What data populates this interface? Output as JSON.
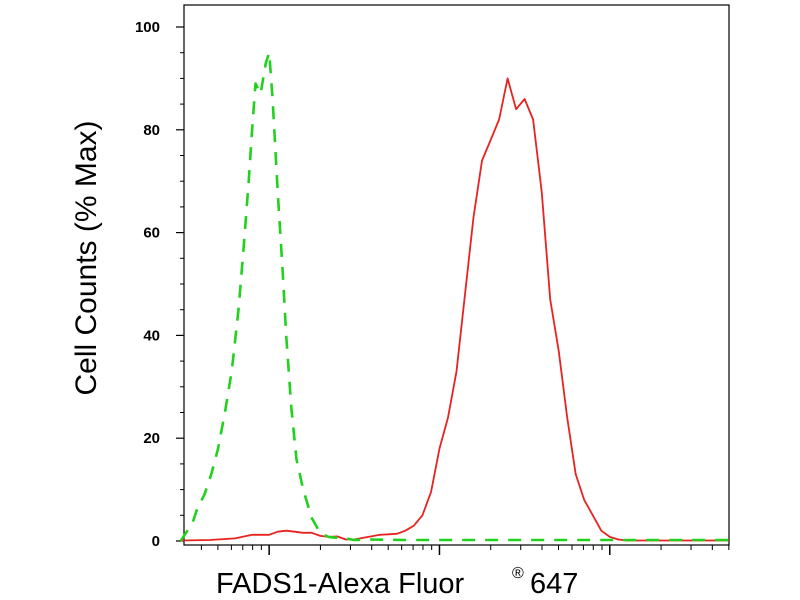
{
  "chart_data": {
    "type": "line",
    "xlabel": "FADS1-Alexa Fluor",
    "xlabel_mark": "®",
    "xlabel_suffix": "647",
    "ylabel": "Cell Counts (% Max)",
    "x_scale": "log",
    "x_range": [
      -0.5,
      2.7
    ],
    "ylim": [
      0,
      100
    ],
    "y_ticks": [
      0,
      20,
      40,
      60,
      80,
      100
    ],
    "x_major_ticks": [
      0,
      1,
      2
    ],
    "grid": false,
    "series": [
      {
        "color": "#e8231f",
        "style": "solid",
        "x": [
          -0.52,
          -0.35,
          -0.2,
          -0.1,
          0.0,
          0.05,
          0.1,
          0.15,
          0.2,
          0.25,
          0.3,
          0.35,
          0.4,
          0.45,
          0.5,
          0.55,
          0.6,
          0.65,
          0.7,
          0.75,
          0.8,
          0.85,
          0.9,
          0.95,
          1.0,
          1.05,
          1.1,
          1.15,
          1.2,
          1.25,
          1.3,
          1.35,
          1.4,
          1.45,
          1.5,
          1.55,
          1.6,
          1.65,
          1.7,
          1.75,
          1.8,
          1.85,
          1.9,
          1.95,
          2.0,
          2.05,
          2.1,
          2.2,
          2.3,
          2.5,
          2.7
        ],
        "y": [
          0.1,
          0.2,
          0.5,
          1.2,
          1.2,
          1.8,
          2.0,
          1.8,
          1.6,
          1.6,
          1.0,
          0.8,
          0.9,
          0.3,
          0.3,
          0.6,
          0.9,
          1.2,
          1.3,
          1.4,
          2.0,
          3.0,
          5.0,
          9.5,
          18,
          24,
          33,
          48,
          63,
          74,
          78,
          82,
          90,
          84,
          86,
          82,
          68,
          47,
          37,
          24,
          13,
          8,
          5,
          2,
          0.8,
          0.3,
          0.1,
          0.1,
          0.1,
          0.1,
          0.1
        ]
      },
      {
        "color": "#22d11e",
        "style": "dashed",
        "x": [
          -0.52,
          -0.45,
          -0.42,
          -0.38,
          -0.34,
          -0.3,
          -0.26,
          -0.22,
          -0.18,
          -0.15,
          -0.12,
          -0.1,
          -0.08,
          -0.05,
          -0.02,
          0.0,
          0.02,
          0.05,
          0.08,
          0.1,
          0.13,
          0.16,
          0.2,
          0.25,
          0.3,
          0.35,
          0.4,
          0.45,
          0.5,
          0.6,
          0.8,
          1.0,
          1.3,
          1.6,
          2.0,
          2.4,
          2.7
        ],
        "y": [
          0.0,
          3.5,
          6.5,
          9.0,
          13,
          18,
          25,
          33,
          45,
          57,
          70,
          80,
          89,
          87,
          93,
          95,
          86,
          68,
          52,
          40,
          26,
          16,
          10,
          4.5,
          1.5,
          0.8,
          0.6,
          0.5,
          0.2,
          0.3,
          0.2,
          0.2,
          0.2,
          0.2,
          0.2,
          0.2,
          0.2
        ]
      }
    ]
  }
}
